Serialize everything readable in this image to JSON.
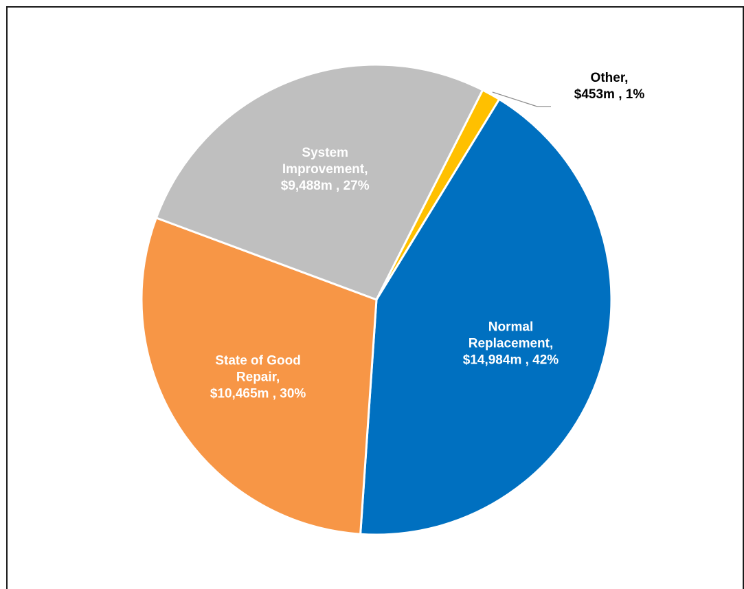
{
  "chart_data": {
    "type": "pie",
    "title": "",
    "slices": [
      {
        "category": "Normal Replacement",
        "value": 14984,
        "value_label": "$14,984m",
        "percent_label": "42%",
        "color": "#0070C0",
        "label_lines": [
          "Normal",
          "Replacement,",
          "$14,984m , 42%"
        ],
        "label_color": "#ffffff"
      },
      {
        "category": "State of Good Repair",
        "value": 10465,
        "value_label": "$10,465m",
        "percent_label": "30%",
        "color": "#F79646",
        "label_lines": [
          "State of Good",
          "Repair,",
          "$10,465m , 30%"
        ],
        "label_color": "#ffffff"
      },
      {
        "category": "System Improvement",
        "value": 9488,
        "value_label": "$9,488m",
        "percent_label": "27%",
        "color": "#BFBFBF",
        "label_lines": [
          "System",
          "Improvement,",
          "$9,488m , 27%"
        ],
        "label_color": "#ffffff"
      },
      {
        "category": "Other",
        "value": 453,
        "value_label": "$453m",
        "percent_label": "1%",
        "color": "#FFC000",
        "label_lines": [
          "Other,",
          "$453m , 1%"
        ],
        "label_color": "#000000"
      }
    ],
    "start_angle_deg": 31.5,
    "direction": "clockwise",
    "legend": "none",
    "data_labels": "inside (Other: outside with leader line)"
  }
}
